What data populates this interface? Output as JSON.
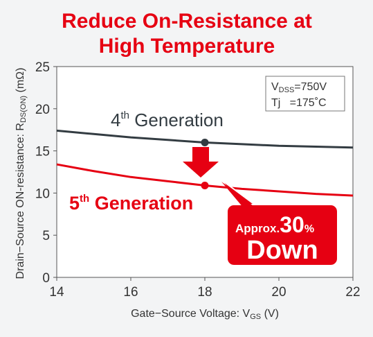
{
  "chart_data": {
    "type": "line",
    "title_lines": [
      "Reduce On-Resistance at",
      "High Temperature"
    ],
    "x_label_parts": [
      "Gate−Source Voltage: V",
      "GS",
      " (V)"
    ],
    "y_label_parts": [
      "Drain−Source ON-resistance: R",
      "DS(ON)",
      " (mΩ)"
    ],
    "x": [
      14,
      15,
      16,
      17,
      18,
      19,
      20,
      21,
      22
    ],
    "series": [
      {
        "name_parts": [
          "4",
          "th",
          " Generation"
        ],
        "color": "#333c42",
        "values": [
          17.4,
          17.0,
          16.6,
          16.3,
          16.0,
          15.8,
          15.6,
          15.5,
          15.4
        ]
      },
      {
        "name_parts": [
          "5",
          "th",
          " Generation"
        ],
        "color": "#e60012",
        "values": [
          13.4,
          12.6,
          11.9,
          11.4,
          10.9,
          10.5,
          10.2,
          9.9,
          9.7
        ]
      }
    ],
    "highlight_index": 4,
    "xlim": [
      14,
      22
    ],
    "xticks": [
      14,
      16,
      18,
      20,
      22
    ],
    "ylim": [
      0,
      25
    ],
    "yticks": [
      0,
      5,
      10,
      15,
      20,
      25
    ],
    "conditions": {
      "vdss_parts": [
        "V",
        "DSS",
        "=750V"
      ],
      "tj": "Tj   =175˚C"
    },
    "callout": {
      "prefix": "Approx.",
      "number": "30",
      "unit": "%",
      "word": "Down"
    }
  }
}
